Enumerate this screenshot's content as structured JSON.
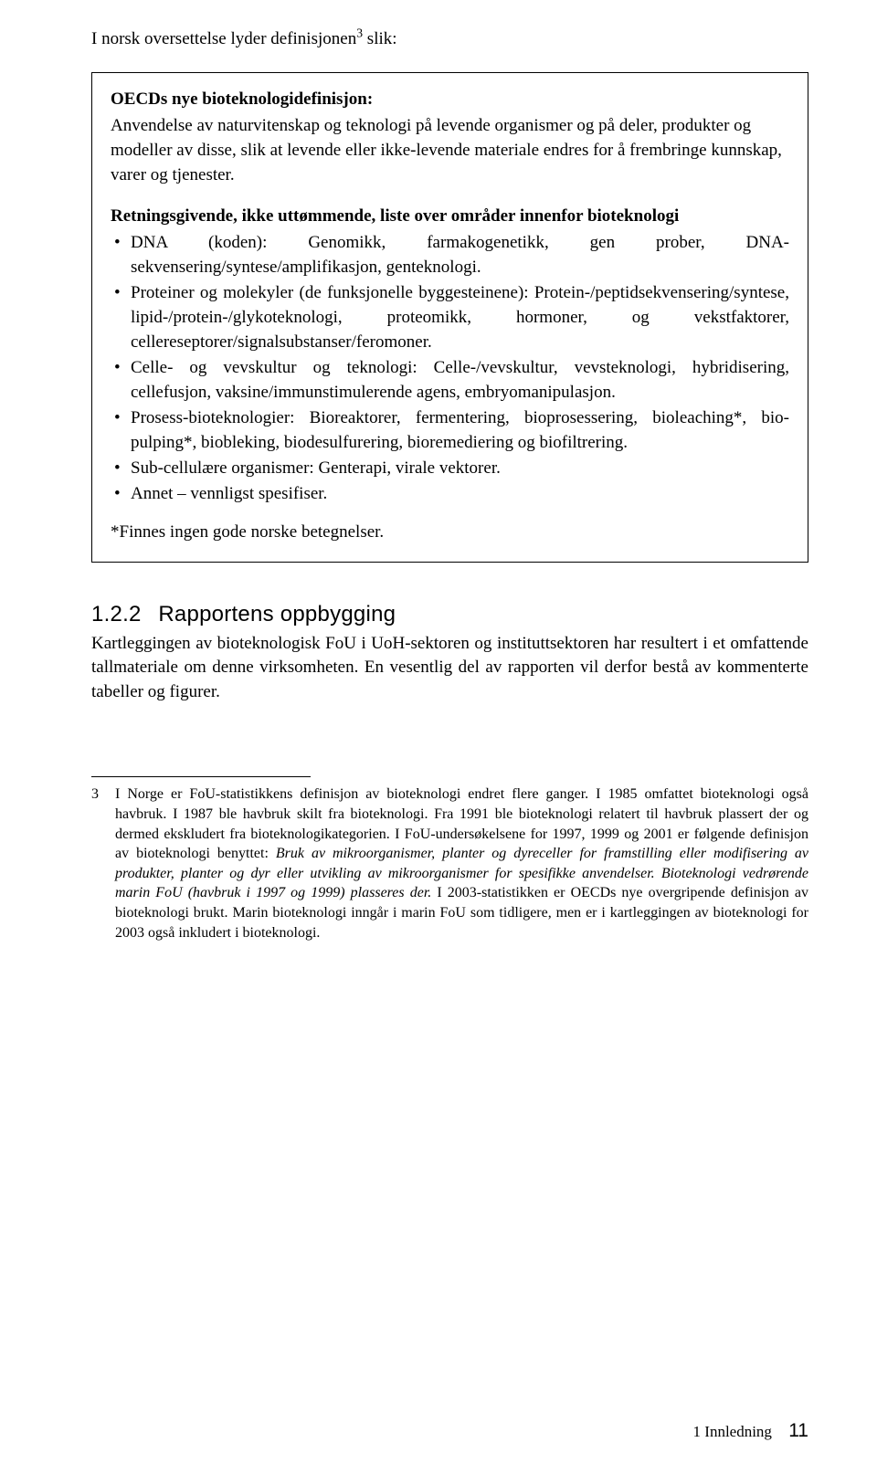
{
  "intro": "I norsk oversettelse lyder definisjonen",
  "intro_sup": "3",
  "intro_tail": " slik:",
  "box": {
    "title": "OECDs nye bioteknologidefinisjon:",
    "para": "Anvendelse av naturvitenskap og teknologi på levende organismer og på deler, produkter og modeller av disse, slik at levende eller ikke-levende materiale endres for å frembringe kunnskap, varer og tjenester.",
    "subhead": "Retningsgivende, ikke uttømmende, liste over områder innenfor bioteknologi",
    "bullets": [
      "DNA (koden): Genomikk, farmakogenetikk, gen prober, DNA-sekvensering/syntese/amplifikasjon, genteknologi.",
      "Proteiner og molekyler (de funksjonelle byggesteinene): Protein-/peptidsekvensering/syntese, lipid-/protein-/glykoteknologi, proteomikk, hormoner, og vekstfaktorer, cellereseptorer/signalsubstanser/feromoner.",
      "Celle- og vevskultur og teknologi: Celle-/vevskultur, vevsteknologi, hybridisering, cellefusjon, vaksine/immunstimulerende agens, embryomanipulasjon.",
      "Prosess-bioteknologier: Bioreaktorer, fermentering, bioprosessering, bioleaching*, bio-pulping*, biobleking, biodesulfurering, bioremediering og biofiltrering.",
      "Sub-cellulære organismer: Genterapi, virale vektorer.",
      "Annet – vennligst spesifiser."
    ],
    "note": "*Finnes ingen gode norske betegnelser."
  },
  "section": {
    "num": "1.2.2",
    "title": "Rapportens oppbygging",
    "para": "Kartleggingen av bioteknologisk FoU i UoH-sektoren og instituttsektoren har resultert i et omfattende tallmateriale om denne virksomheten. En vesentlig del av rapporten vil derfor bestå av kommenterte tabeller og figurer."
  },
  "footnote": {
    "num": "3",
    "text_a": "I Norge er FoU-statistikkens definisjon av bioteknologi endret flere ganger. I 1985 omfattet bioteknologi også havbruk. I 1987 ble havbruk skilt fra bioteknologi. Fra 1991 ble bioteknologi relatert til havbruk plassert der og dermed ekskludert fra bioteknologikategorien. I FoU-undersøkelsene for 1997, 1999 og 2001 er følgende definisjon av bioteknologi benyttet: ",
    "text_italic": "Bruk av mikroorganismer, planter og dyreceller for framstilling eller modifisering av produkter, planter og dyr eller utvikling av mikroorganismer for spesifikke anvendelser. Bioteknologi vedrørende marin FoU (havbruk i 1997 og 1999) plasseres der.",
    "text_b": " I 2003-statistikken er OECDs nye overgripende definisjon av bioteknologi brukt. Marin bioteknologi inngår i marin FoU som tidligere, men er i kartleggingen av bioteknologi for 2003 også inkludert i bioteknologi."
  },
  "footer": {
    "chapter": "1 Innledning",
    "page": "11"
  }
}
